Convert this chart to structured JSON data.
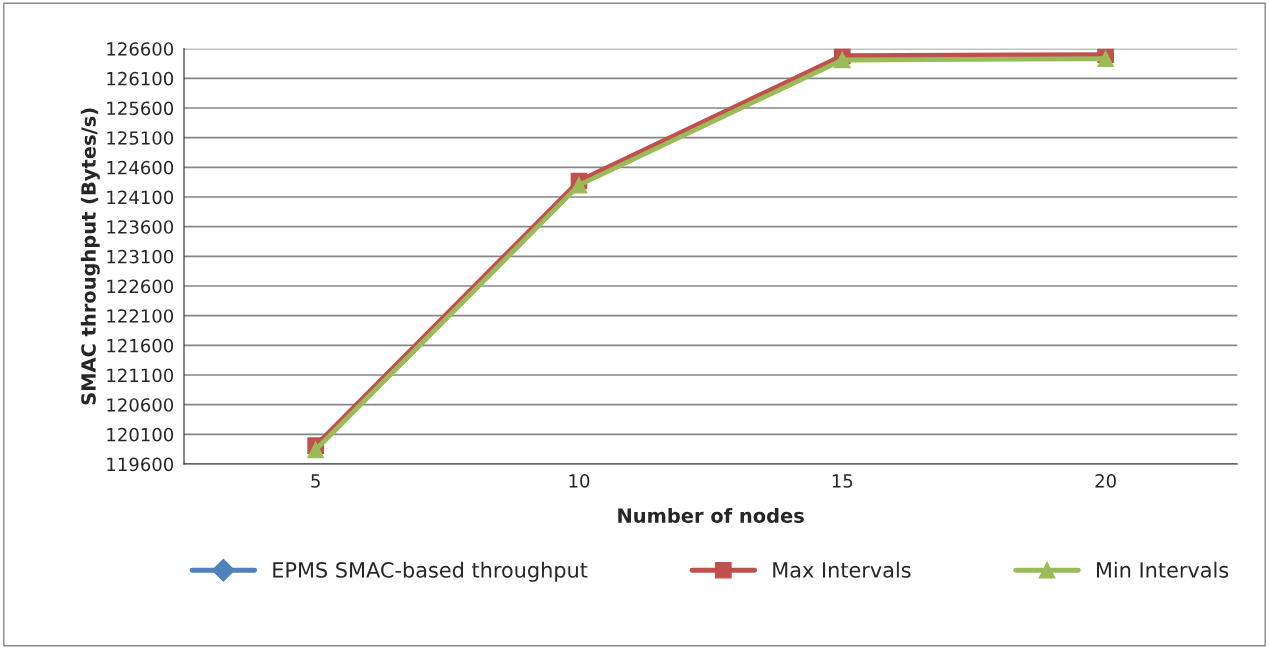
{
  "chart_data": {
    "type": "line",
    "xlabel": "Number of nodes",
    "ylabel": "SMAC throughput (Bytes/s)",
    "categories": [
      "5",
      "10",
      "15",
      "20"
    ],
    "series": [
      {
        "name": "EPMS SMAC-based throughput",
        "color": "#4f81bd",
        "marker": "diamond",
        "values": [
          null,
          null,
          null,
          null
        ]
      },
      {
        "name": "Max Intervals",
        "color": "#c0504d",
        "marker": "square",
        "values": [
          119910,
          124370,
          126480,
          126500
        ]
      },
      {
        "name": "Min Intervals",
        "color": "#9bbb59",
        "marker": "triangle",
        "values": [
          119840,
          124300,
          126410,
          126430
        ]
      }
    ],
    "ylim": [
      119600,
      126600
    ],
    "yticks": [
      119600,
      120100,
      120600,
      121100,
      121600,
      122100,
      122600,
      123100,
      123600,
      124100,
      124600,
      125100,
      125600,
      126100,
      126600
    ],
    "grid": "y",
    "legend": "bottom"
  }
}
